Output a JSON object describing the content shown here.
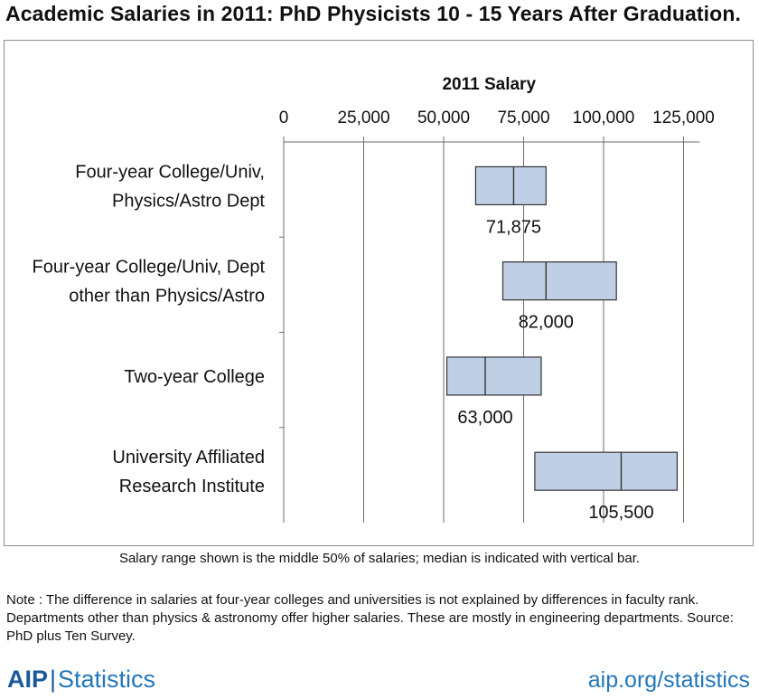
{
  "page": {
    "title": "Academic Salaries in 2011: PhD Physicists 10 - 15 Years After Graduation.",
    "caption": "Salary range shown is the middle 50% of salaries; median is indicated with vertical bar.",
    "note": "Note : The difference in salaries at four-year colleges and universities is not explained by differences in faculty rank.  Departments other than physics & astronomy offer higher salaries.  These are mostly in engineering departments.  Source: PhD plus Ten Survey.",
    "footer": {
      "brand": "AIP",
      "separator": "|",
      "brand_suffix": "Statistics",
      "url": "aip.org/statistics"
    }
  },
  "chart_data": {
    "type": "box",
    "orientation": "horizontal",
    "xlabel": "2011 Salary",
    "xlim": [
      0,
      130000
    ],
    "ticks": [
      0,
      25000,
      50000,
      75000,
      100000,
      125000
    ],
    "tick_labels": [
      "0",
      "25,000",
      "50,000",
      "75,000",
      "100,000",
      "125,000"
    ],
    "grid": "vertical",
    "box_color": "#bfcfe6",
    "categories": [
      {
        "label_lines": [
          "Four-year College/Univ,",
          "Physics/Astro Dept"
        ],
        "q1": 60000,
        "median": 71875,
        "q3": 82000,
        "median_label": "71,875"
      },
      {
        "label_lines": [
          "Four-year College/Univ, Dept",
          "other than Physics/Astro"
        ],
        "q1": 68500,
        "median": 82000,
        "q3": 104000,
        "median_label": "82,000"
      },
      {
        "label_lines": [
          "Two-year College"
        ],
        "q1": 51000,
        "median": 63000,
        "q3": 80500,
        "median_label": "63,000"
      },
      {
        "label_lines": [
          "University Affiliated",
          "Research Institute"
        ],
        "q1": 78500,
        "median": 105500,
        "q3": 123000,
        "median_label": "105,500"
      }
    ]
  }
}
